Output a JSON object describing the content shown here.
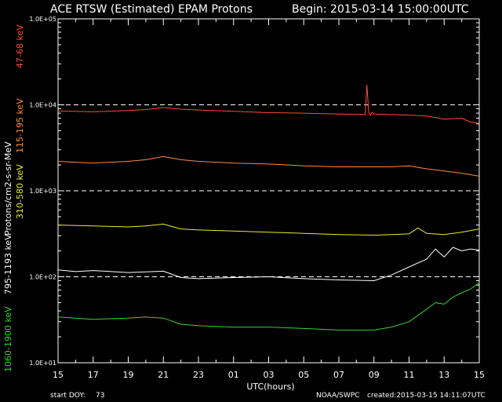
{
  "chart_data": {
    "type": "line",
    "title": "ACE RTSW (Estimated) EPAM Protons",
    "begin": "Begin: 2015-03-14 15:00:00UTC",
    "xlabel": "UTC(hours)",
    "ylabel": "Protons/cm2-s-sr-MeV",
    "y_scale": "log",
    "ylim": [
      10,
      100000
    ],
    "y_ticks": [
      "1.0E+01",
      "1.0E+02",
      "1.0E+03",
      "1.0E+04",
      "1.0E+05"
    ],
    "x_ticks": [
      "15",
      "17",
      "19",
      "21",
      "23",
      "01",
      "03",
      "05",
      "07",
      "09",
      "11",
      "13",
      "15"
    ],
    "xlim_hours": [
      15,
      39
    ],
    "dashed_levels": [
      100,
      1000,
      10000
    ],
    "start_doy_label": "start DOY:",
    "start_doy": "73",
    "source": "NOAA/SWPC",
    "created": "created:2015-03-15 14:11:07UTC",
    "colors": {
      "background": "#000000",
      "axes": "#ffffff",
      "dash": "#ffffff",
      "s1": "#ff4a3a",
      "s2": "#ff8a3c",
      "s3": "#eaea2e",
      "s4": "#ffffff",
      "s5": "#33d62c"
    },
    "series": [
      {
        "name": "47-68 keV",
        "color": "#ff4a3a",
        "x": [
          15,
          17,
          19,
          20,
          21,
          22,
          23,
          25,
          27,
          29,
          31,
          32.5,
          32.6,
          32.7,
          32.8,
          32.9,
          33,
          35,
          36,
          37,
          38,
          38.5,
          39
        ],
        "y": [
          8500,
          8300,
          8600,
          8800,
          9300,
          8900,
          8700,
          8400,
          8100,
          8000,
          7800,
          7700,
          17000,
          8200,
          7600,
          8200,
          7800,
          7600,
          7400,
          6800,
          7000,
          6300,
          6100
        ]
      },
      {
        "name": "115-195 keV",
        "color": "#ff8a3c",
        "x": [
          15,
          17,
          19,
          20,
          21,
          22,
          23,
          25,
          27,
          29,
          31,
          33,
          34,
          35,
          36,
          37,
          38,
          39
        ],
        "y": [
          2200,
          2100,
          2200,
          2300,
          2500,
          2300,
          2200,
          2100,
          2050,
          1950,
          1900,
          1900,
          1900,
          1950,
          1800,
          1700,
          1600,
          1480
        ]
      },
      {
        "name": "310-580 keV",
        "color": "#eaea2e",
        "x": [
          15,
          17,
          19,
          20,
          21,
          22,
          23,
          25,
          27,
          29,
          31,
          33,
          34,
          35,
          35.5,
          36,
          37,
          38,
          39
        ],
        "y": [
          400,
          390,
          380,
          390,
          410,
          360,
          350,
          340,
          330,
          320,
          310,
          305,
          310,
          315,
          370,
          320,
          310,
          330,
          360
        ]
      },
      {
        "name": "795-1193 keV",
        "color": "#ffffff",
        "x": [
          15,
          16,
          17,
          19,
          21,
          22,
          23,
          25,
          27,
          29,
          31,
          33,
          34,
          35,
          36,
          36.5,
          37,
          37.5,
          38,
          38.5,
          39
        ],
        "y": [
          120,
          115,
          118,
          112,
          116,
          98,
          95,
          98,
          100,
          95,
          92,
          90,
          105,
          130,
          160,
          210,
          170,
          220,
          200,
          210,
          205
        ]
      },
      {
        "name": "1060-1900 keV",
        "color": "#33d62c",
        "x": [
          15,
          17,
          19,
          20,
          21,
          22,
          23,
          25,
          27,
          29,
          31,
          33,
          34,
          35,
          36,
          36.5,
          37,
          37.5,
          38,
          38.5,
          39
        ],
        "y": [
          34,
          32,
          33,
          34,
          33,
          28,
          27,
          26,
          26,
          25,
          24,
          24,
          26,
          30,
          42,
          50,
          48,
          58,
          65,
          72,
          85
        ]
      }
    ]
  }
}
